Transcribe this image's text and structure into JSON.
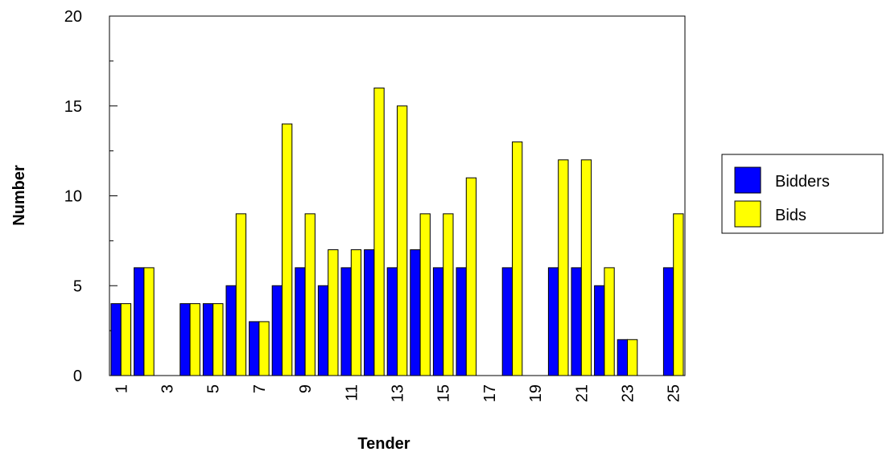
{
  "chart_data": {
    "type": "bar",
    "x_label": "Tender",
    "y_label": "Number",
    "categories": [
      "1",
      null,
      "3",
      null,
      "5",
      null,
      "7",
      null,
      "9",
      null,
      "11",
      null,
      "13",
      null,
      "15",
      null,
      "17",
      null,
      "19",
      null,
      "21",
      null,
      "23",
      null,
      "25"
    ],
    "series": [
      {
        "name": "Bidders",
        "color": "#0000ff",
        "values": [
          4,
          6,
          0,
          4,
          4,
          5,
          3,
          5,
          6,
          5,
          6,
          7,
          6,
          7,
          6,
          6,
          0,
          6,
          0,
          6,
          6,
          5,
          2,
          0,
          6
        ]
      },
      {
        "name": "Bids",
        "color": "#ffff00",
        "values": [
          4,
          6,
          0,
          4,
          4,
          9,
          3,
          14,
          9,
          7,
          7,
          16,
          15,
          9,
          9,
          11,
          0,
          13,
          0,
          12,
          12,
          6,
          2,
          0,
          9
        ]
      }
    ],
    "ylim": [
      0,
      20
    ],
    "yticks": [
      0,
      5,
      10,
      15,
      20
    ],
    "yminorticks": [
      2.5,
      7.5,
      12.5,
      17.5
    ],
    "legend": "right"
  }
}
